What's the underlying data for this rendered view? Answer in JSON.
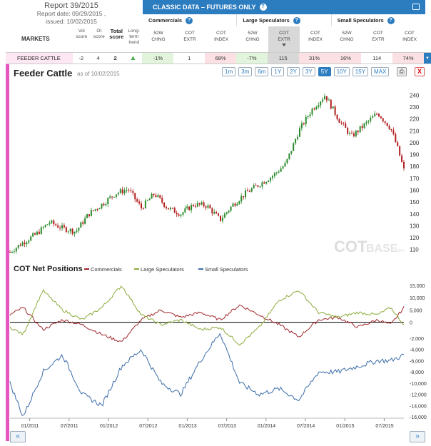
{
  "report": {
    "title": "Report 39/2015",
    "date_line": "Report date: 09/29/2015 ,",
    "issued_line": "issued: 10/02/2015"
  },
  "markets_header": "MARKETS",
  "score_headers": {
    "vol": "Vol score",
    "oi": "OI score",
    "total": "Total score",
    "trend": "Long-term trend"
  },
  "classic_bar": {
    "title": "CLASSIC DATA – FUTURES ONLY",
    "help": "?"
  },
  "groups": [
    "Commercials",
    "Large Speculators",
    "Small Speculators"
  ],
  "subcols": [
    [
      "52W",
      "CHNG"
    ],
    [
      "COT",
      "EXTR"
    ],
    [
      "COT",
      "INDEX"
    ],
    [
      "52W",
      "CHNG"
    ],
    [
      "COT",
      "EXTR"
    ],
    [
      "COT",
      "INDEX"
    ],
    [
      "52W",
      "CHNG"
    ],
    [
      "COT",
      "EXTR"
    ],
    [
      "COT",
      "INDEX"
    ]
  ],
  "market": {
    "name": "FEEDER CATTLE",
    "vol": "-2",
    "oi": "4",
    "total": "2",
    "trend_icon": "up-arrow-icon",
    "cells": [
      "-1%",
      "1",
      "68%",
      "-7%",
      "115",
      "31%",
      "16%",
      "114",
      "74%"
    ]
  },
  "chart": {
    "title": "Feeder Cattle",
    "as_of": "as of 10/02/2015",
    "ranges": [
      "1m",
      "3m",
      "6m",
      "1Y",
      "2Y",
      "3Y",
      "5Y",
      "10Y",
      "15Y",
      "MAX"
    ],
    "active_range": "5Y",
    "close_label": "X",
    "watermark_main": "COT",
    "watermark_sub": "BASE",
    "watermark_dom": ".com"
  },
  "colors": {
    "commercials": "#a0262a",
    "large_specs": "#8aab3a",
    "small_specs": "#3a6ca8",
    "candle_up": "#2a8a2a",
    "candle_down": "#b21e1e"
  },
  "chart_data": [
    {
      "type": "candlestick",
      "title": "Feeder Cattle",
      "x_ticks": [
        "01/2011",
        "07/2011",
        "01/2012",
        "07/2012",
        "01/2013",
        "07/2013",
        "01/2014",
        "07/2014",
        "01/2015",
        "07/2015"
      ],
      "y_ticks": [
        110,
        120,
        130,
        140,
        150,
        160,
        170,
        180,
        190,
        200,
        210,
        220,
        230,
        240
      ],
      "ylim": [
        105,
        245
      ],
      "series": [
        {
          "name": "Feeder Cattle",
          "x": [
            "2010-10",
            "2010-12",
            "2011-02",
            "2011-04",
            "2011-06",
            "2011-08",
            "2011-10",
            "2011-12",
            "2012-02",
            "2012-04",
            "2012-06",
            "2012-08",
            "2012-10",
            "2012-12",
            "2013-02",
            "2013-04",
            "2013-06",
            "2013-08",
            "2013-10",
            "2013-12",
            "2014-02",
            "2014-04",
            "2014-06",
            "2014-08",
            "2014-10",
            "2014-12",
            "2015-02",
            "2015-04",
            "2015-06",
            "2015-08",
            "2015-09",
            "2015-10"
          ],
          "values": [
            108,
            116,
            123,
            133,
            128,
            125,
            140,
            148,
            157,
            161,
            145,
            157,
            145,
            140,
            148,
            147,
            135,
            148,
            158,
            165,
            172,
            182,
            210,
            228,
            240,
            220,
            205,
            215,
            225,
            212,
            196,
            177
          ]
        }
      ]
    },
    {
      "type": "line",
      "title": "COT Net Positions",
      "x_ticks": [
        "01/2011",
        "07/2011",
        "01/2012",
        "07/2012",
        "01/2013",
        "07/2013",
        "01/2014",
        "07/2014",
        "01/2015",
        "07/2015"
      ],
      "y_ticks": [
        15000,
        10000,
        5000,
        0,
        -2000,
        -4000,
        -6000,
        -8000,
        -10000,
        -12000,
        -14000,
        -16000
      ],
      "series": [
        {
          "name": "Commercials",
          "x": [
            "2010-10",
            "2010-12",
            "2011-03",
            "2011-06",
            "2011-09",
            "2011-12",
            "2012-03",
            "2012-06",
            "2012-09",
            "2012-12",
            "2013-03",
            "2013-06",
            "2013-09",
            "2013-12",
            "2014-03",
            "2014-06",
            "2014-09",
            "2014-12",
            "2015-03",
            "2015-06",
            "2015-08",
            "2015-10"
          ],
          "values": [
            3000,
            6000,
            -3000,
            1000,
            -1000,
            -5000,
            -8000,
            1000,
            5000,
            2000,
            4000,
            1000,
            7000,
            3000,
            -1000,
            -6000,
            1000,
            2000,
            -2000,
            1000,
            -1000,
            6000
          ]
        },
        {
          "name": "Large Speculators",
          "x": [
            "2010-10",
            "2010-12",
            "2011-03",
            "2011-06",
            "2011-09",
            "2011-12",
            "2012-03",
            "2012-06",
            "2012-09",
            "2012-12",
            "2013-03",
            "2013-06",
            "2013-09",
            "2013-12",
            "2014-03",
            "2014-06",
            "2014-09",
            "2014-12",
            "2015-03",
            "2015-06",
            "2015-08",
            "2015-10"
          ],
          "values": [
            -2000,
            -5000,
            13000,
            5000,
            1000,
            6000,
            15000,
            3000,
            -1000,
            1000,
            -3000,
            -2000,
            -9000,
            -2000,
            9000,
            13000,
            4000,
            2000,
            4000,
            3000,
            6000,
            -1000
          ]
        },
        {
          "name": "Small Speculators",
          "x": [
            "2010-10",
            "2010-12",
            "2011-03",
            "2011-06",
            "2011-09",
            "2011-12",
            "2012-03",
            "2012-06",
            "2012-09",
            "2012-12",
            "2013-03",
            "2013-06",
            "2013-09",
            "2013-12",
            "2014-03",
            "2014-06",
            "2014-09",
            "2014-12",
            "2015-03",
            "2015-06",
            "2015-08",
            "2015-10"
          ],
          "values": [
            -10000,
            -16000,
            -8000,
            -5000,
            -12000,
            -14000,
            -7000,
            -4000,
            -10000,
            -12000,
            -6000,
            -1000,
            -10000,
            -12000,
            -11000,
            -13000,
            -8000,
            -8000,
            -7000,
            -6000,
            -6000,
            -5000
          ]
        }
      ]
    }
  ]
}
